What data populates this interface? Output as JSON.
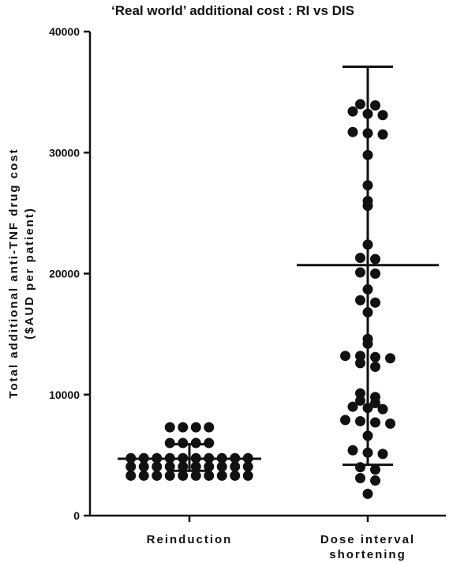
{
  "chart_data": {
    "type": "scatter",
    "title": "‘Real world’ additional cost : RI vs DIS",
    "ylabel_line1": "Total additional anti-TNF drug cost",
    "ylabel_line2": "($AUD per patient)",
    "ylim": [
      0,
      40000
    ],
    "yticks": [
      0,
      10000,
      20000,
      30000,
      40000
    ],
    "ytick_labels": [
      "0",
      "10000",
      "20000",
      "30000",
      "40000"
    ],
    "categories": [
      {
        "lines": [
          "Reinduction"
        ]
      },
      {
        "lines": [
          "Dose interval",
          "shortening"
        ]
      }
    ],
    "series": [
      {
        "center": 4700,
        "error_low": 3700,
        "error_high": 5900,
        "points": [
          3300,
          3300,
          3300,
          3300,
          3300,
          3300,
          3300,
          3300,
          3300,
          3300,
          4050,
          4050,
          4050,
          4050,
          4050,
          4050,
          4050,
          4050,
          4050,
          4050,
          4750,
          4750,
          4750,
          4750,
          4750,
          4750,
          4750,
          4750,
          4750,
          4750,
          6000,
          6000,
          6000,
          6000,
          7300,
          7300,
          7300,
          7300
        ]
      },
      {
        "center": 20700,
        "error_low": 4200,
        "error_high": 37100,
        "points": [
          33900,
          34000,
          33200,
          33400,
          33100,
          31600,
          31700,
          31500,
          29800,
          27300,
          26000,
          25600,
          22400,
          21200,
          21300,
          20000,
          20100,
          18700,
          17800,
          17600,
          16800,
          14600,
          14200,
          13200,
          13000,
          13100,
          13200,
          12600,
          12300,
          10100,
          9800,
          9500,
          9300,
          9000,
          8900,
          8800,
          7900,
          7800,
          7600,
          7700,
          6600,
          5400,
          5200,
          5100,
          4000,
          3800,
          3100,
          2900,
          1800
        ]
      }
    ]
  }
}
